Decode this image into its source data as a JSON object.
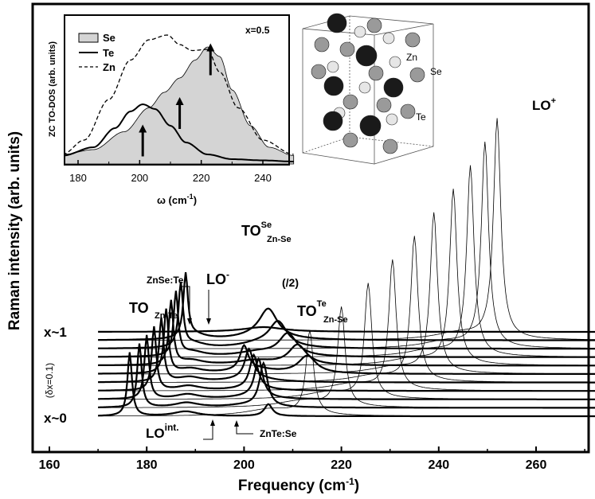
{
  "chart_data": {
    "type": "line",
    "title": "",
    "xlabel": "Frequency (cm",
    "xlabel_sup": "-1",
    "xlabel_close": ")",
    "ylabel": "Raman intensity (arb. units)",
    "xlim": [
      155,
      270
    ],
    "xticks": [
      "160",
      "180",
      "200",
      "220",
      "240",
      "260"
    ],
    "x_values": [
      160,
      180,
      200,
      220,
      240,
      260
    ],
    "series_count": 11,
    "composition_x": [
      0.0,
      0.1,
      0.2,
      0.3,
      0.4,
      0.5,
      0.6,
      0.7,
      0.8,
      0.9,
      1.0
    ],
    "lo_plus_peaks_cm1": [
      213.5,
      220.0,
      225.5,
      230.5,
      235.0,
      239.0,
      243.0,
      246.5,
      249.5,
      252.0
    ],
    "to_znte_peaks_cm1": [
      176.5,
      178.5,
      180.0,
      181.5,
      183.0,
      184.0,
      185.0,
      186.0,
      187.0,
      188.0
    ],
    "to_znse_se_peaks_cm1": [
      205.0,
      204.0,
      203.0,
      202.0,
      201.0,
      200.0
    ],
    "to_znse_te_peaks_cm1": [
      213.0,
      211.0,
      209.0,
      207.0,
      205.0
    ],
    "annotations": {
      "lo_plus": "LO",
      "lo_plus_sup": "+",
      "to_se_main": "TO",
      "to_se_sup": "Se",
      "to_se_sub": "Zn-Se",
      "half": "(/2)",
      "to_te_main": "TO",
      "to_te_sup": "Te",
      "to_te_sub": "Zn-Se",
      "to_znte_main": "TO",
      "to_znte_sub": "Zn-Te",
      "znse_te": "ZnSe:Te",
      "lo_minus": "LO",
      "lo_minus_sup": "-",
      "lo_int": "LO",
      "lo_int_sup": "int.",
      "znte_se": "ZnTe:Se",
      "x_top": "x~1",
      "x_bottom": "x~0",
      "dx": "(δx=0.1)"
    },
    "inset": {
      "type": "line",
      "xlabel": "ω (cm",
      "xlabel_sup": "-1",
      "xlabel_close": ")",
      "ylabel": "ZC TO-DOS (arb. units)",
      "xlim": [
        175,
        250
      ],
      "xticks": [
        "180",
        "200",
        "220",
        "240"
      ],
      "x_values": [
        180,
        200,
        220,
        240
      ],
      "composition_label": "x=0.5",
      "legend": [
        "Se",
        "Te",
        "Zn"
      ],
      "series": [
        {
          "name": "Se",
          "style": "filled-gray",
          "x": [
            175,
            185,
            195,
            203,
            208,
            213,
            218,
            222,
            226,
            230,
            236,
            242,
            250
          ],
          "y": [
            0.06,
            0.1,
            0.25,
            0.45,
            0.58,
            0.7,
            0.85,
            0.96,
            0.88,
            0.6,
            0.3,
            0.12,
            0.05
          ]
        },
        {
          "name": "Te",
          "style": "solid",
          "x": [
            175,
            185,
            192,
            197,
            201,
            205,
            210,
            215,
            222,
            230,
            240,
            250
          ],
          "y": [
            0.05,
            0.12,
            0.28,
            0.42,
            0.48,
            0.44,
            0.3,
            0.16,
            0.06,
            0.02,
            0.01,
            0.0
          ]
        },
        {
          "name": "Zn",
          "style": "dashed",
          "x": [
            175,
            182,
            190,
            197,
            203,
            209,
            213,
            217,
            222,
            226,
            232,
            240,
            250
          ],
          "y": [
            0.06,
            0.18,
            0.52,
            0.85,
            1.02,
            1.06,
            0.98,
            0.93,
            0.94,
            0.75,
            0.45,
            0.18,
            0.06
          ]
        }
      ],
      "arrows_cm1": [
        201,
        213,
        223
      ]
    },
    "structure_labels": [
      "Zn",
      "Se",
      "Te"
    ],
    "colors": {
      "axis": "#000000",
      "fill": "#d4d4d4",
      "atom_se": "#9a9a9a",
      "atom_te": "#1a1a1a",
      "atom_zn": "#e6e6e6"
    }
  }
}
